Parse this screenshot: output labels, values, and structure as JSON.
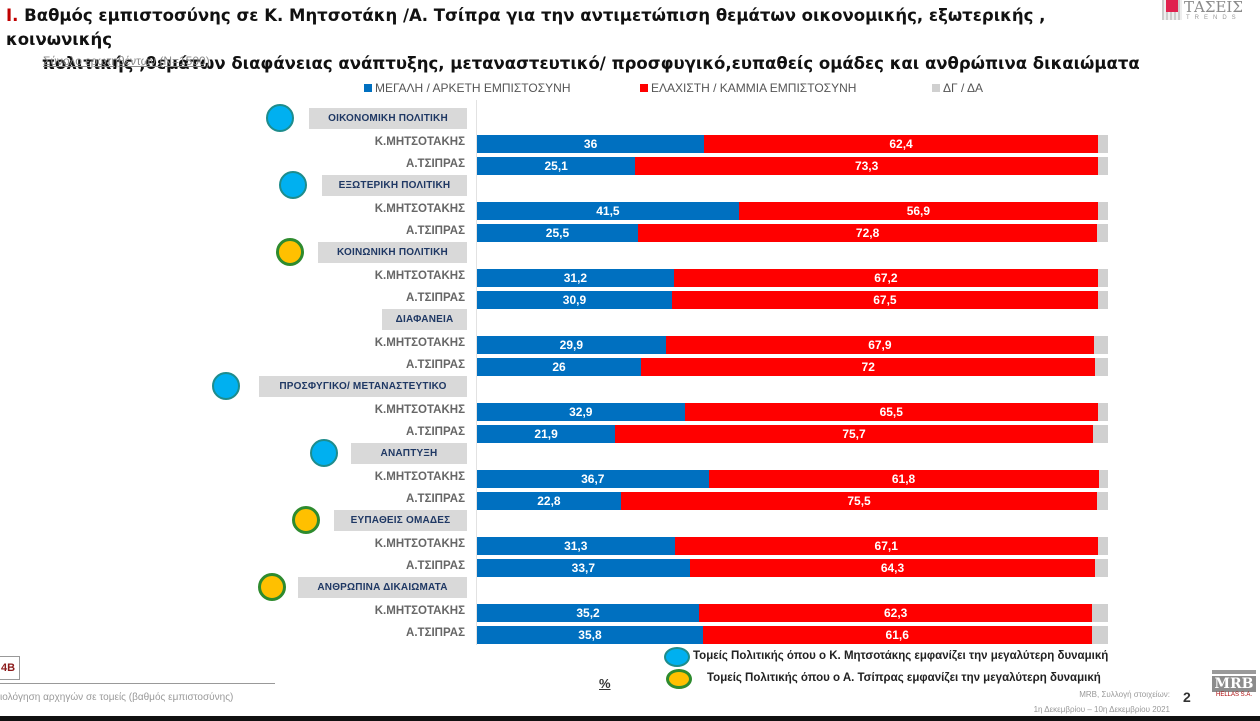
{
  "title": {
    "number": "I.",
    "line1": " Βαθμός εμπιστοσύνης σε Κ. Μητσοτάκη /Α. Τσίπρα για την αντιμετώπιση θεμάτων οικονομικής, εξωτερικής , κοινωνικής",
    "line2": "πολιτικής ,θεμάτων διαφάνειας ανάπτυξης, μεταναστευτικό/ προσφυγικό,ευπαθείς ομάδες και ανθρώπινα δικαιώματα",
    "subtitle": "Σύνολο ερωτηθέντων (N=1500)"
  },
  "logo_top": {
    "name": "ΤΑΣΕΙΣ",
    "sub": "TRENDS"
  },
  "colors": {
    "high": "#0070c0",
    "low": "#ff0000",
    "dk": "#d0d0d0",
    "mitsotakis_dot": "#00b0f0",
    "tsipras_dot": "#ffc000"
  },
  "chart_data": {
    "type": "bar",
    "orientation": "horizontal-stacked-100",
    "title": "Βαθμός εμπιστοσύνης σε Κ. Μητσοτάκη /Α. Τσίπρα",
    "unit": "%",
    "xlim": [
      0,
      100
    ],
    "legend": [
      {
        "name": "ΜΕΓΑΛΗ / ΑΡΚΕΤΗ ΕΜΠΙΣΤΟΣΥΝΗ",
        "color": "#0070c0"
      },
      {
        "name": "ΕΛΑΧΙΣΤΗ / ΚΑΜΜΙΑ ΕΜΠΙΣΤΟΣΥΝΗ",
        "color": "#ff0000"
      },
      {
        "name": "ΔΓ / ΔΑ",
        "color": "#d0d0d0"
      }
    ],
    "legend_position": "top",
    "groups": [
      {
        "category": "ΟΙΚΟΝΟΜΙΚΗ ΠΟΛΙΤΙΚΗ",
        "advantage": "mitsotakis",
        "rows": [
          {
            "label": "Κ.ΜΗΤΣΟΤΑΚΗΣ",
            "high": 36,
            "high_label": "36",
            "low": 62.4,
            "low_label": "62,4"
          },
          {
            "label": "Α.ΤΣΙΠΡΑΣ",
            "high": 25.1,
            "high_label": "25,1",
            "low": 73.3,
            "low_label": "73,3"
          }
        ]
      },
      {
        "category": "ΕΞΩΤΕΡΙΚΗ ΠΟΛΙΤΙΚΗ",
        "advantage": "mitsotakis",
        "rows": [
          {
            "label": "Κ.ΜΗΤΣΟΤΑΚΗΣ",
            "high": 41.5,
            "high_label": "41,5",
            "low": 56.9,
            "low_label": "56,9"
          },
          {
            "label": "Α.ΤΣΙΠΡΑΣ",
            "high": 25.5,
            "high_label": "25,5",
            "low": 72.8,
            "low_label": "72,8"
          }
        ]
      },
      {
        "category": "ΚΟΙΝΩΝΙΚΗ ΠΟΛΙΤΙΚΗ",
        "advantage": "tsipras",
        "rows": [
          {
            "label": "Κ.ΜΗΤΣΟΤΑΚΗΣ",
            "high": 31.2,
            "high_label": "31,2",
            "low": 67.2,
            "low_label": "67,2"
          },
          {
            "label": "Α.ΤΣΙΠΡΑΣ",
            "high": 30.9,
            "high_label": "30,9",
            "low": 67.5,
            "low_label": "67,5"
          }
        ]
      },
      {
        "category": "ΔΙΑΦΑΝΕΙΑ",
        "advantage": "none",
        "rows": [
          {
            "label": "Κ.ΜΗΤΣΟΤΑΚΗΣ",
            "high": 29.9,
            "high_label": "29,9",
            "low": 67.9,
            "low_label": "67,9"
          },
          {
            "label": "Α.ΤΣΙΠΡΑΣ",
            "high": 26,
            "high_label": "26",
            "low": 72,
            "low_label": "72"
          }
        ]
      },
      {
        "category": "ΠΡΟΣΦΥΓΙΚΟ/ ΜΕΤΑΝΑΣΤΕΥΤΙΚΟ",
        "advantage": "mitsotakis",
        "rows": [
          {
            "label": "Κ.ΜΗΤΣΟΤΑΚΗΣ",
            "high": 32.9,
            "high_label": "32,9",
            "low": 65.5,
            "low_label": "65,5"
          },
          {
            "label": "Α.ΤΣΙΠΡΑΣ",
            "high": 21.9,
            "high_label": "21,9",
            "low": 75.7,
            "low_label": "75,7"
          }
        ]
      },
      {
        "category": "ΑΝΑΠΤΥΞΗ",
        "advantage": "mitsotakis",
        "rows": [
          {
            "label": "Κ.ΜΗΤΣΟΤΑΚΗΣ",
            "high": 36.7,
            "high_label": "36,7",
            "low": 61.8,
            "low_label": "61,8"
          },
          {
            "label": "Α.ΤΣΙΠΡΑΣ",
            "high": 22.8,
            "high_label": "22,8",
            "low": 75.5,
            "low_label": "75,5"
          }
        ]
      },
      {
        "category": "ΕΥΠΑΘΕΙΣ ΟΜΑΔΕΣ",
        "advantage": "tsipras",
        "rows": [
          {
            "label": "Κ.ΜΗΤΣΟΤΑΚΗΣ",
            "high": 31.3,
            "high_label": "31,3",
            "low": 67.1,
            "low_label": "67,1"
          },
          {
            "label": "Α.ΤΣΙΠΡΑΣ",
            "high": 33.7,
            "high_label": "33,7",
            "low": 64.3,
            "low_label": "64,3"
          }
        ]
      },
      {
        "category": "ΑΝΘΡΩΠΙΝΑ ΔΙΚΑΙΩΜΑΤΑ",
        "advantage": "tsipras",
        "rows": [
          {
            "label": "Κ.ΜΗΤΣΟΤΑΚΗΣ",
            "high": 35.2,
            "high_label": "35,2",
            "low": 62.3,
            "low_label": "62,3"
          },
          {
            "label": "Α.ΤΣΙΠΡΑΣ",
            "high": 35.8,
            "high_label": "35,8",
            "low": 61.6,
            "low_label": "61,6"
          }
        ]
      }
    ]
  },
  "footer": {
    "note_code": "4B",
    "note_text": "ιολόγηση αρχηγών σε τομείς (βαθμός εμπιστοσύνης)",
    "percent_symbol": "%",
    "key_mitsotakis": "Τομείς Πολιτικής όπου ο Κ. Μητσοτάκης εμφανίζει την μεγαλύτερη δυναμική",
    "key_tsipras": "Τομείς Πολιτικής όπου ο Α. Τσίπρας εμφανίζει την μεγαλύτερη δυναμική",
    "source_line1": "MRB, Συλλογή στοιχείων:",
    "source_line2": "1η Δεκεμβρίου – 10η Δεκεμβρίου 2021",
    "page_number": "2",
    "mrb_logo": "MRB",
    "mrb_sub": "HELLAS S.A."
  }
}
